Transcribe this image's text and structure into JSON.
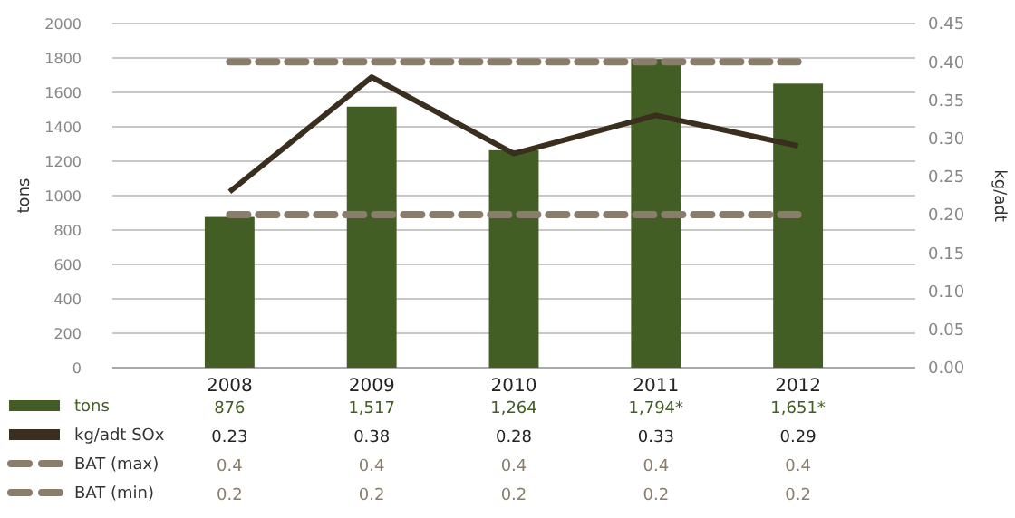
{
  "chart_data": {
    "type": "bar",
    "categories": [
      "2008",
      "2009",
      "2010",
      "2011",
      "2012"
    ],
    "ylabel": "tons",
    "y2label": "kg/adt",
    "ylim": [
      0,
      2000
    ],
    "yticks": [
      0,
      200,
      400,
      600,
      800,
      1000,
      1200,
      1400,
      1600,
      1800,
      2000
    ],
    "y2lim": [
      0,
      0.45
    ],
    "y2ticks": [
      {
        "value": 0,
        "label": "0.00"
      },
      {
        "value": 0.05,
        "label": "0.05"
      },
      {
        "value": 0.1,
        "label": "0.10"
      },
      {
        "value": 0.15,
        "label": "0.15"
      },
      {
        "value": 0.2,
        "label": "0.20"
      },
      {
        "value": 0.25,
        "label": "0.25"
      },
      {
        "value": 0.3,
        "label": "0.30"
      },
      {
        "value": 0.35,
        "label": "0.35"
      },
      {
        "value": 0.4,
        "label": "0.40"
      },
      {
        "value": 0.45,
        "label": "0.45"
      }
    ],
    "grid": "y",
    "legend": "bottom",
    "series": [
      {
        "name": "tons",
        "color": "#435e24",
        "values": [
          876,
          1517,
          1264,
          1794,
          1651
        ],
        "value_labels": [
          "876",
          "1,517",
          "1,264",
          "1,794*",
          "1,651*"
        ]
      },
      {
        "name": "kg/adt SOx",
        "type": "line",
        "axis": "y2",
        "color": "#3a2e1f",
        "line_style": "solid",
        "values": [
          0.23,
          0.38,
          0.28,
          0.33,
          0.29
        ],
        "value_labels": [
          "0.23",
          "0.38",
          "0.28",
          "0.33",
          "0.29"
        ]
      },
      {
        "name": "BAT (max)",
        "type": "line",
        "axis": "y2",
        "color": "#8a7d6b",
        "line_style": "dashed",
        "values": [
          0.4,
          0.4,
          0.4,
          0.4,
          0.4
        ],
        "value_labels": [
          "0.4",
          "0.4",
          "0.4",
          "0.4",
          "0.4"
        ]
      },
      {
        "name": "BAT (min)",
        "type": "line",
        "axis": "y2",
        "color": "#8a7d6b",
        "line_style": "dashed",
        "values": [
          0.2,
          0.2,
          0.2,
          0.2,
          0.2
        ],
        "value_labels": [
          "0.2",
          "0.2",
          "0.2",
          "0.2",
          "0.2"
        ]
      }
    ]
  }
}
